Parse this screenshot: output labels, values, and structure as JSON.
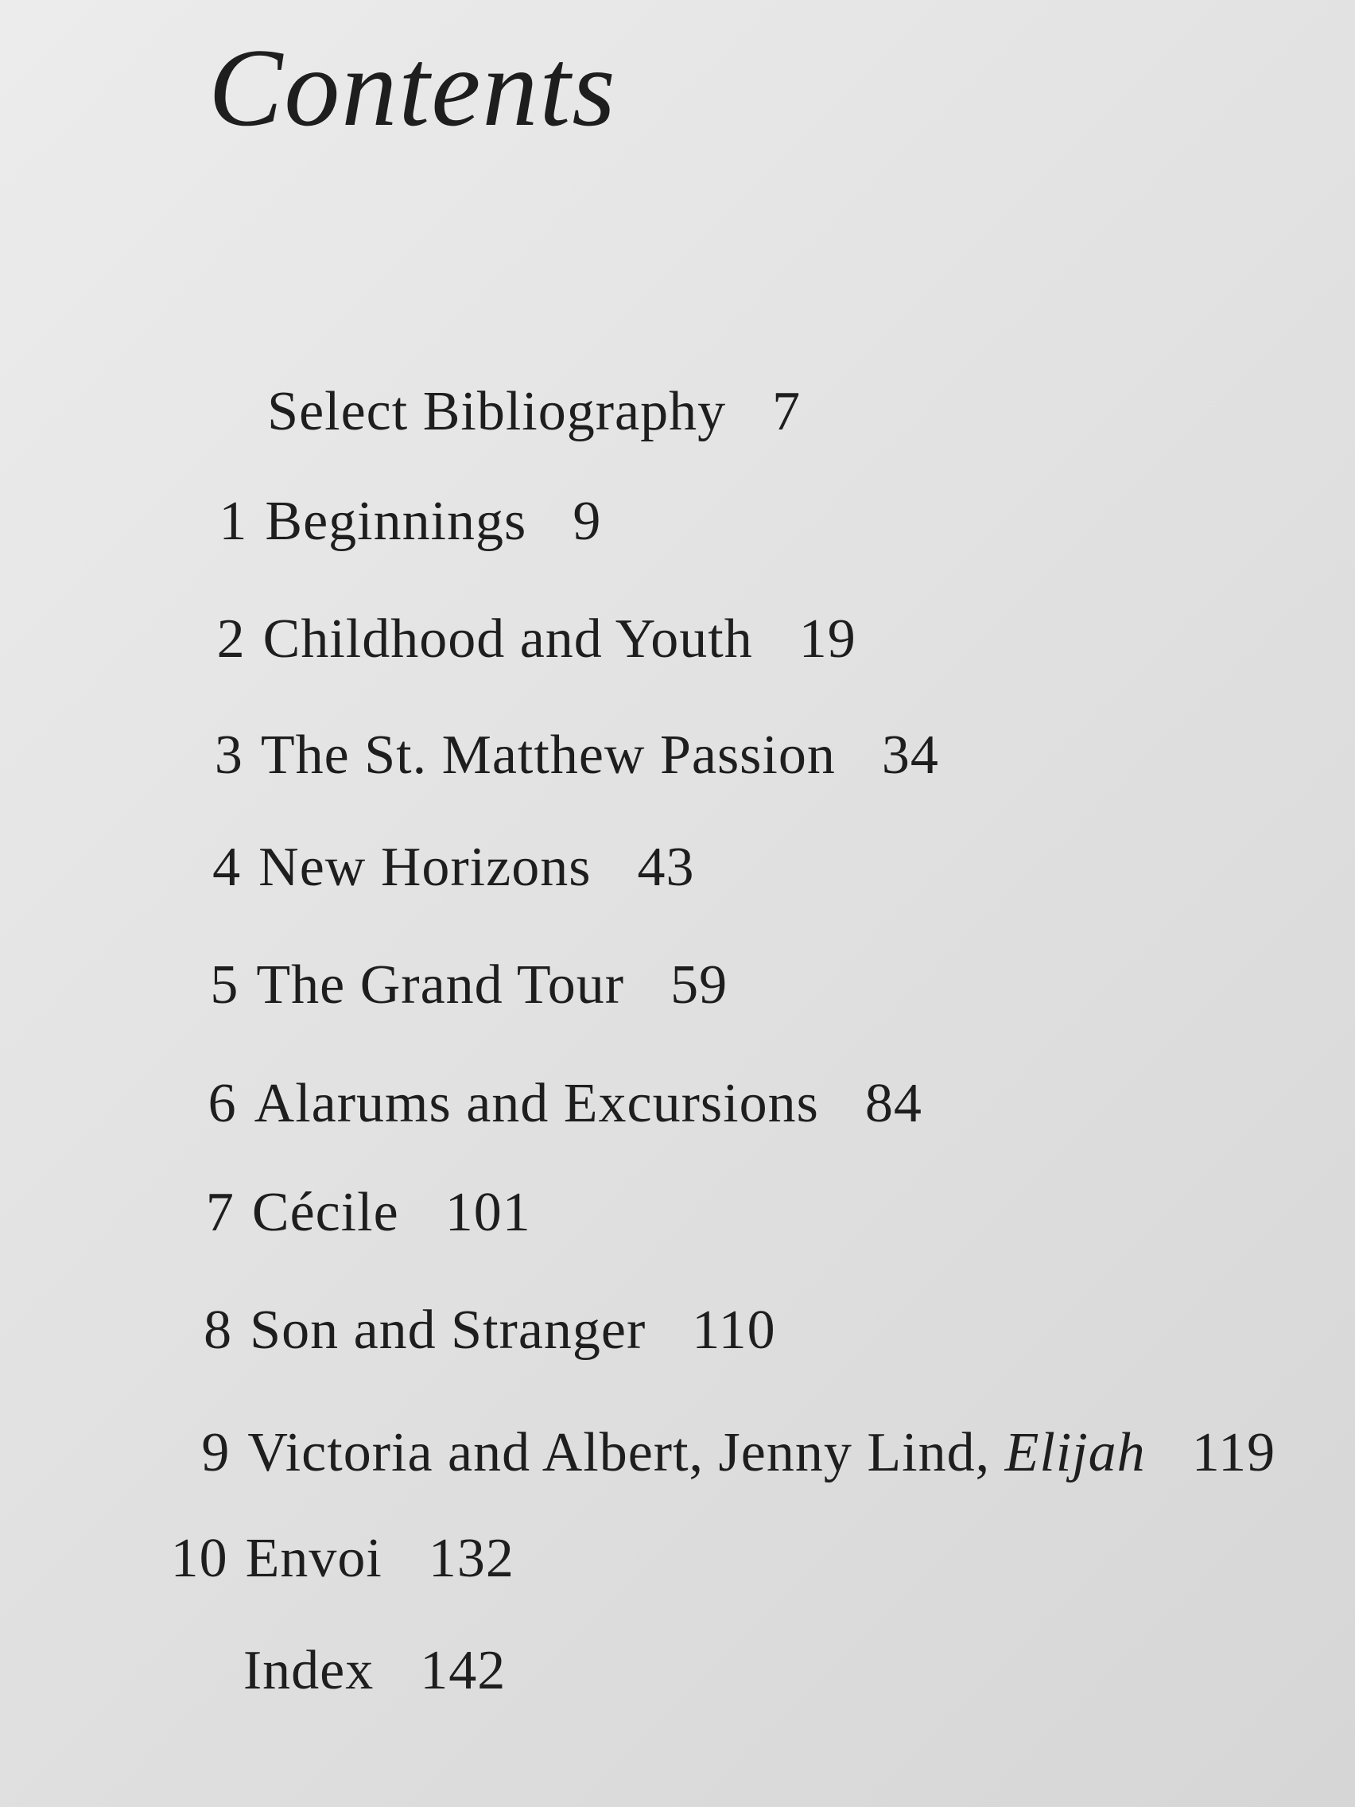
{
  "header": {
    "title": "Contents"
  },
  "entries": [
    {
      "title": "Select Bibliography",
      "page": 7
    },
    {
      "number": 1,
      "title": "Beginnings",
      "page": 9
    },
    {
      "number": 2,
      "title": "Childhood and Youth",
      "page": 19
    },
    {
      "number": 3,
      "title": "The St. Matthew Passion",
      "page": 34
    },
    {
      "number": 4,
      "title": "New Horizons",
      "page": 43
    },
    {
      "number": 5,
      "title": "The Grand Tour",
      "page": 59
    },
    {
      "number": 6,
      "title": "Alarums and Excursions",
      "page": 84
    },
    {
      "number": 7,
      "title": "Cécile",
      "page": 101
    },
    {
      "number": 8,
      "title": "Son and Stranger",
      "page": 110
    },
    {
      "number": 9,
      "title": "Victoria and Albert, Jenny Lind,",
      "title_italic": "Elijah",
      "page": 119
    },
    {
      "number": 10,
      "title": "Envoi",
      "page": 132
    },
    {
      "title": "Index",
      "page": 142
    }
  ]
}
